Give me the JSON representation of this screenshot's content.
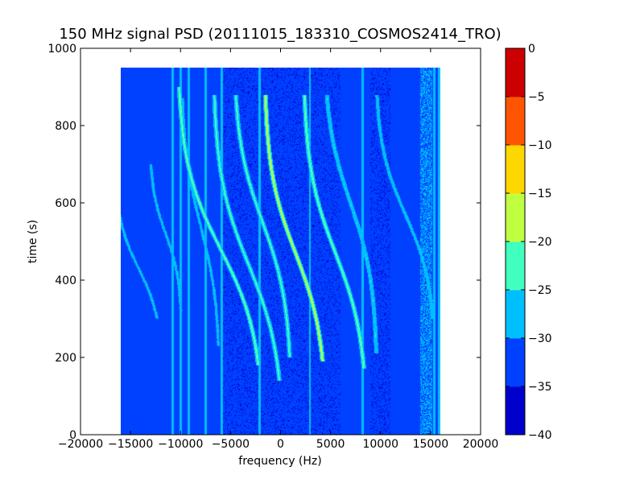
{
  "chart_data": {
    "type": "heatmap",
    "title": "150 MHz signal PSD (20111015_183310_COSMOS2414_TRO)",
    "xlabel": "frequency (Hz)",
    "ylabel": "time (s)",
    "xlim": [
      -20000,
      20000
    ],
    "ylim": [
      0,
      1000
    ],
    "x_ticks": [
      -20000,
      -15000,
      -10000,
      -5000,
      0,
      5000,
      10000,
      15000,
      20000
    ],
    "x_tick_labels": [
      "−20000",
      "−15000",
      "−10000",
      "−5000",
      "0",
      "5000",
      "10000",
      "15000",
      "20000"
    ],
    "y_ticks": [
      0,
      200,
      400,
      600,
      800,
      1000
    ],
    "y_tick_labels": [
      "0",
      "200",
      "400",
      "600",
      "800",
      "1000"
    ],
    "data_extent": {
      "x": [
        -16000,
        16000
      ],
      "y": [
        0,
        950
      ]
    },
    "colorbar": {
      "levels": [
        -40,
        -35,
        -30,
        -25,
        -20,
        -15,
        -10,
        -5,
        0
      ],
      "tick_labels": [
        "−40",
        "−35",
        "−30",
        "−25",
        "−20",
        "−15",
        "−10",
        "−5",
        "0"
      ],
      "colors": [
        "#0000cc",
        "#0040ff",
        "#00bfff",
        "#40ffbf",
        "#bfff40",
        "#ffd700",
        "#ff5500",
        "#cc0000"
      ]
    },
    "background_level": -32,
    "traces": [
      {
        "center": -14200,
        "t0": 430,
        "amplitude": 2200,
        "span": [
          300,
          710
        ],
        "level": -28
      },
      {
        "center": -11500,
        "t0": 520,
        "amplitude": 1500,
        "span": [
          320,
          700
        ],
        "level": -28
      },
      {
        "center": -8000,
        "t0": 540,
        "amplitude": 1800,
        "span": [
          230,
          870
        ],
        "level": -28
      },
      {
        "center": -6000,
        "t0": 480,
        "amplitude": 4000,
        "span": [
          180,
          900
        ],
        "level": -20
      },
      {
        "center": -3200,
        "t0": 440,
        "amplitude": 3300,
        "span": [
          140,
          880
        ],
        "level": -22
      },
      {
        "center": -1800,
        "t0": 550,
        "amplitude": 2700,
        "span": [
          200,
          880
        ],
        "level": -22
      },
      {
        "center": 1500,
        "t0": 470,
        "amplitude": 2900,
        "span": [
          190,
          880
        ],
        "level": -15
      },
      {
        "center": 5500,
        "t0": 470,
        "amplitude": 3000,
        "span": [
          170,
          880
        ],
        "level": -20
      },
      {
        "center": 7000,
        "t0": 600,
        "amplitude": 2500,
        "span": [
          210,
          880
        ],
        "level": -25
      },
      {
        "center": 12500,
        "t0": 570,
        "amplitude": 2800,
        "span": [
          300,
          880
        ],
        "level": -27
      }
    ],
    "vertical_lines": [
      {
        "x": -10800,
        "level": -26
      },
      {
        "x": -10000,
        "level": -26
      },
      {
        "x": -9200,
        "level": -27
      },
      {
        "x": -7500,
        "level": -27
      },
      {
        "x": -5900,
        "level": -26
      },
      {
        "x": -2100,
        "level": -26
      },
      {
        "x": 2950,
        "level": -27
      },
      {
        "x": 8200,
        "level": -27
      },
      {
        "x": 15400,
        "level": -26
      },
      {
        "x": 15900,
        "level": -27
      }
    ],
    "noise_band": {
      "x": [
        14000,
        15200
      ],
      "level": -28
    }
  }
}
